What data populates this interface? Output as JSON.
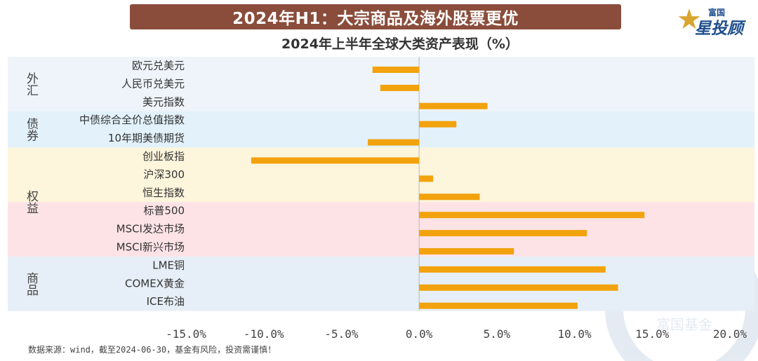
{
  "banner": {
    "title": "2024年H1：大宗商品及海外股票更优"
  },
  "logo": {
    "small": "富国",
    "big": "星投顾",
    "watermark": "富国基金"
  },
  "footer": {
    "source": "数据来源：wind，截至2024-06-30，基金有风险，投资需谨慎！"
  },
  "chart_data": {
    "type": "bar",
    "orientation": "horizontal",
    "title": "2024年上半年全球大类资产表现（%）",
    "categories": [
      "欧元兑美元",
      "人民币兑美元",
      "美元指数",
      "中债综合全价总值指数",
      "10年期美债期货",
      "创业板指",
      "沪深300",
      "恒生指数",
      "标普500",
      "MSCI发达市场",
      "MSCI新兴市场",
      "LME铜",
      "COMEX黄金",
      "ICE布油"
    ],
    "values": [
      -3.0,
      -2.5,
      4.4,
      2.4,
      -3.3,
      -10.8,
      0.9,
      3.9,
      14.5,
      10.8,
      6.1,
      12.0,
      12.8,
      10.2
    ],
    "groups": [
      {
        "name": "外汇",
        "start": 0,
        "end": 2,
        "color": "#eef4fa"
      },
      {
        "name": "债券",
        "start": 3,
        "end": 4,
        "color": "#e2f1fa"
      },
      {
        "name": "权益",
        "start": 5,
        "end": 7,
        "color": "#fdf5dc"
      },
      {
        "name": "",
        "start": 8,
        "end": 10,
        "color": "#fde3e6"
      },
      {
        "name": "商品",
        "start": 11,
        "end": 13,
        "color": "#e6eff7"
      }
    ],
    "xlim": [
      -15.0,
      20.0
    ],
    "xticks": [
      -15.0,
      -10.0,
      -5.0,
      0.0,
      5.0,
      10.0,
      15.0,
      20.0
    ],
    "xtick_labels": [
      "-15.0%",
      "-10.0%",
      "-5.0%",
      "0.0%",
      "5.0%",
      "10.0%",
      "15.0%",
      "20.0%"
    ],
    "bar_color": "#f2a20c",
    "xlabel": "",
    "ylabel": "",
    "grid": false
  }
}
